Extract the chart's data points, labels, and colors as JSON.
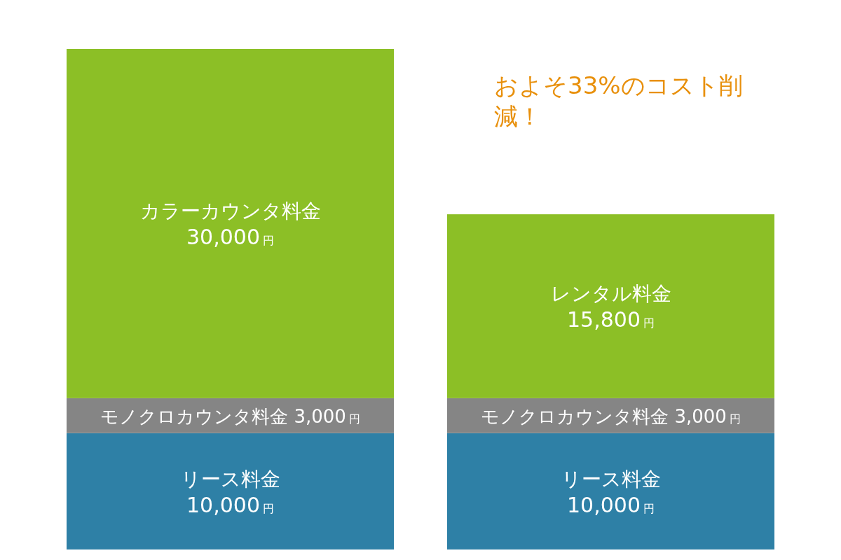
{
  "chart_data": {
    "type": "bar",
    "stacked": true,
    "categories": [
      null,
      null
    ],
    "series": [
      {
        "name": "リース料金",
        "color": "#2e80a6",
        "values": [
          10000,
          10000
        ],
        "value_labels": [
          "10,000$_{円}$",
          "10,000$_{円}$"
        ]
      },
      {
        "name": "モノクロカウンタ料金",
        "color": "#858585",
        "values": [
          3000,
          3000
        ],
        "value_labels": [
          "3,000$_{円}$",
          "3,000$_{円}$"
        ]
      },
      {
        "name": "カラーカウンタ料金",
        "color": "#8cbf26",
        "values": [
          30000,
          null
        ],
        "value_labels": [
          "30,000$_{円}$",
          null
        ]
      },
      {
        "name": "レンタル料金",
        "color": "#8cbf26",
        "values": [
          null,
          15800
        ],
        "value_labels": [
          null,
          "15,800$_{円}$"
        ]
      }
    ],
    "annotations": [
      "およそ33%のコスト削減！"
    ]
  }
}
